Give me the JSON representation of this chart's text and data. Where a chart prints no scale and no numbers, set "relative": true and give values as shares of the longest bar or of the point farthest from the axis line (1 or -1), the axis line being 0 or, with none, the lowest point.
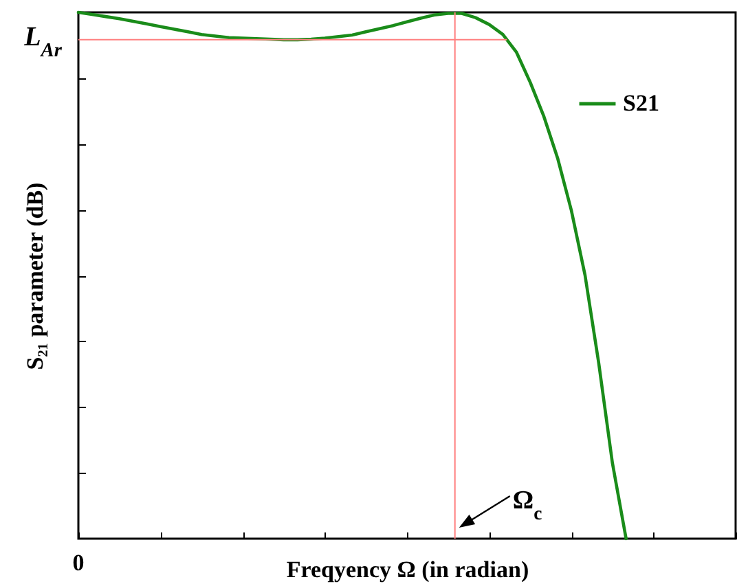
{
  "chart_data": {
    "type": "line",
    "relative": true,
    "xlabel": "Freqyency Ω (in radian)",
    "ylabel": "S₂₁ parameter (dB)",
    "legend": "top right",
    "annotations": [
      "0",
      "Ω$_{c}$"
    ],
    "categories": [
      null,
      null,
      null,
      null,
      null,
      null,
      null,
      null,
      null,
      null,
      null,
      null,
      null,
      null,
      null,
      null,
      null,
      null,
      null,
      null,
      null,
      null,
      null,
      null,
      null,
      null,
      null,
      null,
      null,
      null,
      null,
      null,
      null,
      null,
      null,
      null,
      null,
      null,
      null,
      null,
      null,
      null,
      null,
      null,
      null,
      null,
      null,
      null,
      null
    ],
    "series": [
      {
        "name": "S21",
        "color": "#1a8c1a",
        "values": [
          1,
          0.996,
          0.992,
          0.988,
          0.983,
          0.978,
          0.973,
          0.968,
          0.963,
          0.958,
          0.955,
          0.952,
          0.951,
          0.95,
          0.949,
          0.948,
          0.948,
          0.949,
          0.951,
          0.954,
          0.957,
          0.963,
          0.969,
          0.975,
          0.982,
          0.989,
          0.995,
          0.998,
          0.998,
          0.99,
          0.977,
          0.958,
          0.924,
          0.867,
          0.802,
          0.723,
          0.624,
          0.501,
          0.334,
          0.144,
          0,
          null,
          null,
          null,
          null,
          null,
          null,
          null,
          null
        ]
      }
    ],
    "ref_lines": [
      {
        "axis": "y",
        "value": 0.948,
        "label": "L$_{Ar}$",
        "color": "#ff8080"
      }
    ]
  }
}
